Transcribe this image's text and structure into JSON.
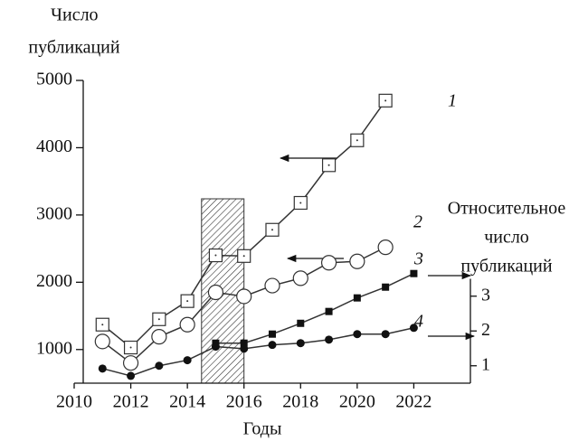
{
  "chart_data": {
    "type": "line",
    "ylabel": [
      "Число",
      "публикаций"
    ],
    "y2label": [
      "Относительное",
      "число",
      "публикаций"
    ],
    "xlabel": "Годы",
    "xlim": [
      2010,
      2024
    ],
    "xticks": [
      2010,
      2012,
      2014,
      2016,
      2018,
      2020,
      2022
    ],
    "ylim": [
      500,
      5000
    ],
    "yticks": [
      1000,
      2000,
      3000,
      4000,
      5000
    ],
    "y2lim": [
      0.5,
      9.2
    ],
    "y2ticks": [
      1,
      2,
      3
    ],
    "shaded_span": [
      2014.5,
      2016
    ],
    "series": [
      {
        "name": "1",
        "color": "#333333",
        "marker": "open-square",
        "x": [
          2011,
          2012,
          2013,
          2014,
          2015,
          2016,
          2017,
          2018,
          2019,
          2020,
          2021
        ],
        "values": [
          1370,
          1030,
          1450,
          1720,
          2400,
          2390,
          2780,
          3180,
          3740,
          4110,
          4700
        ]
      },
      {
        "name": "2",
        "color": "#333333",
        "marker": "open-circle",
        "x": [
          2011,
          2012,
          2013,
          2014,
          2015,
          2016,
          2017,
          2018,
          2019,
          2020,
          2021
        ],
        "values": [
          1120,
          800,
          1190,
          1370,
          1850,
          1790,
          1950,
          2060,
          2290,
          2310,
          2520
        ]
      },
      {
        "name": "3",
        "color": "#333333",
        "marker": "filled-square",
        "axis": "y2",
        "x": [
          2015,
          2016,
          2017,
          2018,
          2019,
          2020,
          2021,
          2022
        ],
        "values": [
          1.65,
          1.65,
          1.91,
          2.22,
          2.56,
          2.95,
          3.26,
          3.65
        ]
      },
      {
        "name": "4",
        "color": "#333333",
        "marker": "filled-circle",
        "axis": "y2",
        "x": [
          2011,
          2012,
          2013,
          2014,
          2015,
          2016,
          2017,
          2018,
          2019,
          2020,
          2021,
          2022
        ],
        "values": [
          0.92,
          0.71,
          1.0,
          1.16,
          1.55,
          1.49,
          1.6,
          1.65,
          1.75,
          1.91,
          1.91,
          2.09
        ]
      }
    ]
  }
}
